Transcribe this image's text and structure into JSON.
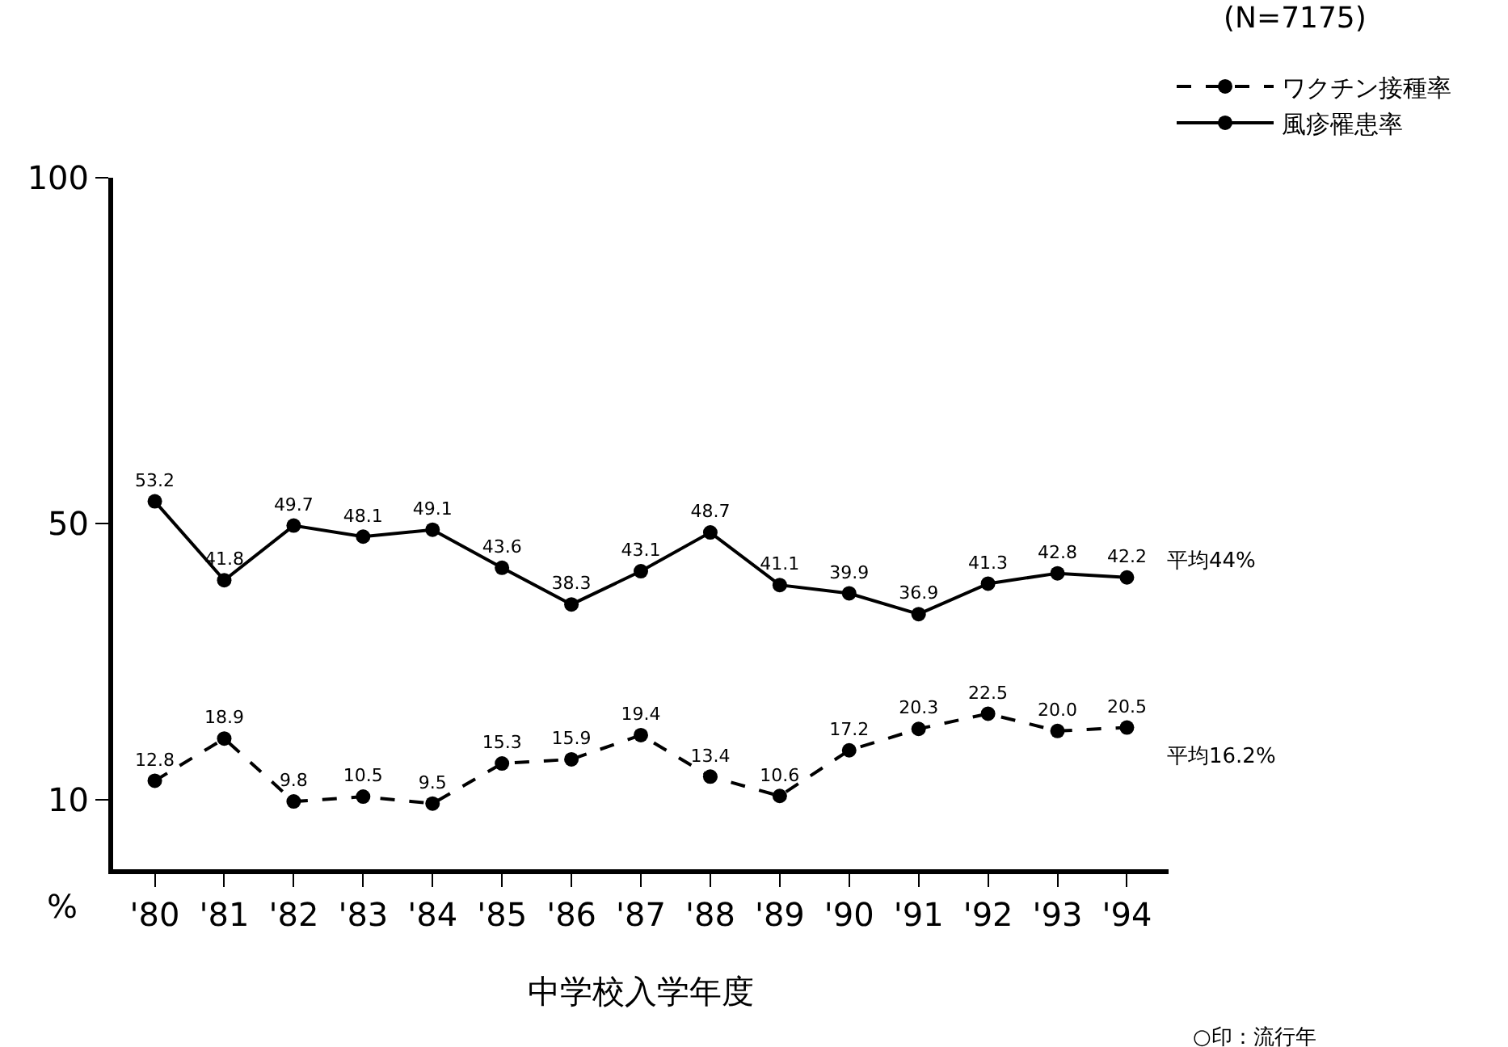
{
  "chart_data": {
    "type": "line",
    "xlabel": "中学校入学年度",
    "ylabel": "%",
    "categories": [
      "'80",
      "'81",
      "'82",
      "'83",
      "'84",
      "'85",
      "'86",
      "'87",
      "'88",
      "'89",
      "'90",
      "'91",
      "'92",
      "'93",
      "'94"
    ],
    "series": [
      {
        "name": "ワクチン接種率",
        "color": "#000000",
        "line_style": "dashed",
        "values": [
          12.8,
          18.9,
          9.8,
          10.5,
          9.5,
          15.3,
          15.9,
          19.4,
          13.4,
          10.6,
          17.2,
          20.3,
          22.5,
          20.0,
          20.5
        ],
        "value_labels": [
          "12.8",
          "18.9",
          "9.8",
          "10.5",
          "9.5",
          "15.3",
          "15.9",
          "19.4",
          "13.4",
          "10.6",
          "17.2",
          "20.3",
          "22.5",
          "20.0",
          "20.5"
        ]
      },
      {
        "name": "風疹罹患率",
        "color": "#000000",
        "line_style": "solid",
        "values": [
          53.2,
          41.8,
          49.7,
          48.1,
          49.1,
          43.6,
          38.3,
          43.1,
          48.7,
          41.1,
          39.9,
          36.9,
          41.3,
          42.8,
          42.2
        ],
        "value_labels": [
          "53.2",
          "41.8",
          "49.7",
          "48.1",
          "49.1",
          "43.6",
          "38.3",
          "43.1",
          "48.7",
          "41.1",
          "39.9",
          "36.9",
          "41.3",
          "42.8",
          "42.2"
        ]
      }
    ],
    "ylim": [
      0,
      100
    ],
    "yticks": [
      10,
      50,
      100
    ],
    "grid": false,
    "legend": "top right",
    "marker": "circle",
    "annotations": [
      "(N=7175)",
      "平均44%",
      "平均16.2%",
      "○印：流行年"
    ]
  }
}
